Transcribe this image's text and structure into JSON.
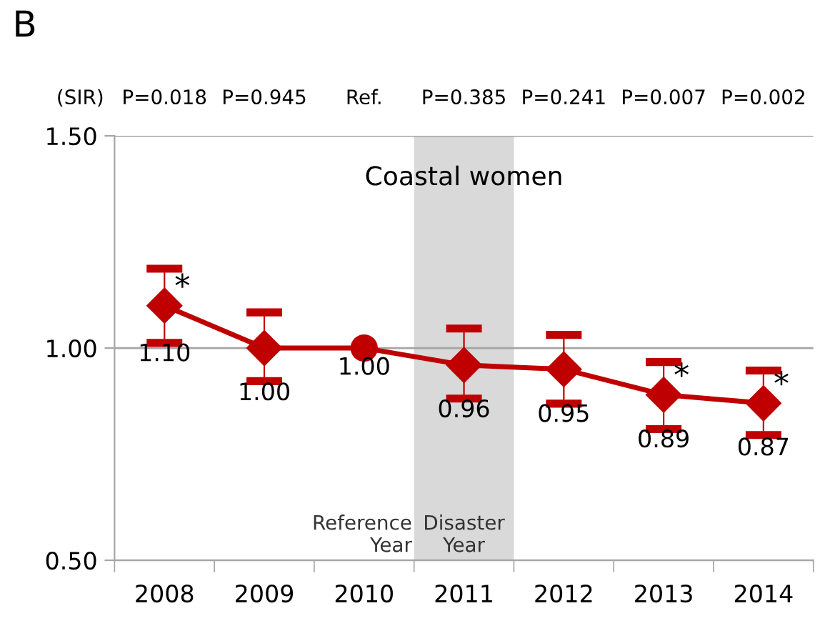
{
  "chart_data": {
    "type": "line",
    "title": "B",
    "subtitle": "Coastal women",
    "ylabel": "(SIR)",
    "categories": [
      "2008",
      "2009",
      "2010",
      "2011",
      "2012",
      "2013",
      "2014"
    ],
    "series": [
      {
        "color": "#c00000",
        "marker": "none",
        "values": [
          1.1,
          1.0,
          1.0,
          0.96,
          0.95,
          0.89,
          0.87
        ]
      },
      {
        "type": "scatter",
        "color": "#c00000",
        "marker": "diamond",
        "values": [
          1.1,
          1.0,
          null,
          0.96,
          0.95,
          0.89,
          0.87
        ],
        "value_labels": [
          "1.10",
          "1.00",
          null,
          "0.96",
          "0.95",
          "0.89",
          "0.87"
        ],
        "errors": [
          [
            1.012,
            1.187
          ],
          [
            0.922,
            1.084
          ],
          null,
          [
            0.881,
            1.046
          ],
          [
            0.869,
            1.031
          ],
          [
            0.809,
            0.967
          ],
          [
            0.795,
            0.947
          ]
        ]
      },
      {
        "type": "scatter",
        "color": "#c00000",
        "marker": "circle",
        "values": [
          null,
          null,
          1.0,
          null,
          null,
          null,
          null
        ],
        "value_labels": [
          null,
          null,
          "1.00",
          null,
          null,
          null,
          null
        ]
      }
    ],
    "ylim": [
      0.5,
      1.5
    ],
    "yticks": [
      {
        "value": 0.5,
        "label": "0.50"
      },
      {
        "value": 1.0,
        "label": "1.00"
      },
      {
        "value": 1.5,
        "label": "1.50"
      }
    ],
    "grid": "y",
    "bands": [
      {
        "axis": "x",
        "from": "2011",
        "to": "2011",
        "label": "Disaster\nYear",
        "color": "#d9d9d9"
      }
    ],
    "annotations": [
      "P=0.018",
      "P=0.945",
      "Ref.",
      "P=0.385",
      "P=0.241",
      "P=0.007",
      "P=0.002",
      {
        "text": "*",
        "x": "2008",
        "y": 1.1
      },
      {
        "text": "*",
        "x": "2013",
        "y": 0.89
      },
      {
        "text": "*",
        "x": "2014",
        "y": 0.87
      },
      "Reference\nYear"
    ]
  }
}
